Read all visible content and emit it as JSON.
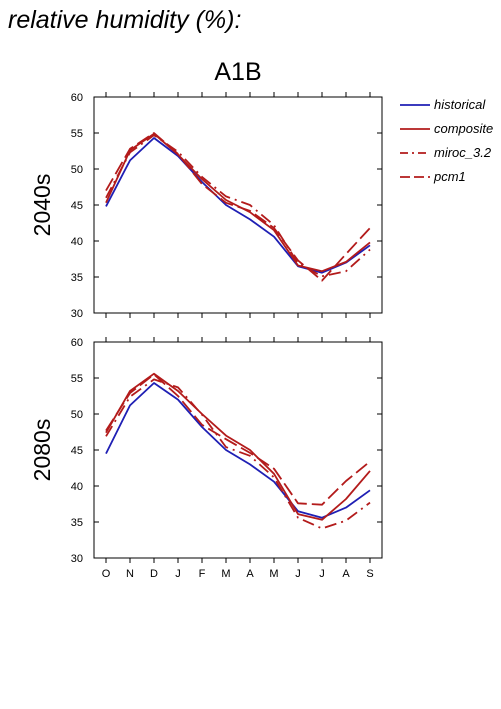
{
  "page_title": "relative humidity (%):",
  "chart_data": [
    {
      "type": "line",
      "title": "A1B",
      "row_label": "2040s",
      "xlabel": "",
      "ylabel": "",
      "categories": [
        "O",
        "N",
        "D",
        "J",
        "F",
        "M",
        "A",
        "M",
        "J",
        "J",
        "A",
        "S"
      ],
      "ylim": [
        30,
        60
      ],
      "yticks": [
        30,
        35,
        40,
        45,
        50,
        55,
        60
      ],
      "grid": false,
      "legend": "right",
      "series": [
        {
          "name": "historical",
          "color": "#1f1fb4",
          "dash": "solid",
          "values": [
            44.8,
            51.2,
            54.3,
            51.8,
            48.2,
            45.0,
            43.0,
            40.6,
            36.5,
            35.6,
            37.0,
            39.4
          ]
        },
        {
          "name": "composite",
          "color": "#b31b1b",
          "dash": "solid",
          "values": [
            45.3,
            52.6,
            54.9,
            52.0,
            48.6,
            45.7,
            44.0,
            41.5,
            36.6,
            35.8,
            37.1,
            39.8
          ]
        },
        {
          "name": "miroc_3.2",
          "color": "#b31b1b",
          "dash": "dashdot",
          "values": [
            46.0,
            52.3,
            54.7,
            52.4,
            48.9,
            46.2,
            45.0,
            42.2,
            36.9,
            35.1,
            35.8,
            38.8
          ]
        },
        {
          "name": "pcm1",
          "color": "#b31b1b",
          "dash": "dash",
          "values": [
            47.0,
            52.8,
            55.0,
            52.1,
            47.9,
            45.3,
            44.2,
            41.8,
            37.3,
            34.5,
            38.2,
            41.8
          ]
        }
      ]
    },
    {
      "type": "line",
      "title": "",
      "row_label": "2080s",
      "xlabel": "",
      "ylabel": "",
      "categories": [
        "O",
        "N",
        "D",
        "J",
        "F",
        "M",
        "A",
        "M",
        "J",
        "J",
        "A",
        "S"
      ],
      "ylim": [
        30,
        60
      ],
      "yticks": [
        30,
        35,
        40,
        45,
        50,
        55,
        60
      ],
      "grid": false,
      "legend": "none",
      "series": [
        {
          "name": "historical",
          "color": "#1f1fb4",
          "dash": "solid",
          "values": [
            44.5,
            51.2,
            54.3,
            52.0,
            48.2,
            45.0,
            43.0,
            40.6,
            36.5,
            35.6,
            37.0,
            39.4
          ]
        },
        {
          "name": "composite",
          "color": "#b31b1b",
          "dash": "solid",
          "values": [
            47.4,
            53.2,
            55.6,
            53.2,
            50.0,
            47.0,
            45.0,
            41.7,
            36.1,
            35.3,
            38.2,
            42.1
          ]
        },
        {
          "name": "miroc_3.2",
          "color": "#b31b1b",
          "dash": "dashdot",
          "values": [
            46.9,
            52.4,
            54.8,
            53.7,
            49.9,
            45.4,
            44.2,
            41.2,
            35.6,
            34.1,
            35.2,
            37.7
          ]
        },
        {
          "name": "pcm1",
          "color": "#b31b1b",
          "dash": "dash",
          "values": [
            47.7,
            52.9,
            55.5,
            52.5,
            48.5,
            46.5,
            44.6,
            42.4,
            37.6,
            37.4,
            40.7,
            43.4
          ]
        }
      ]
    }
  ]
}
